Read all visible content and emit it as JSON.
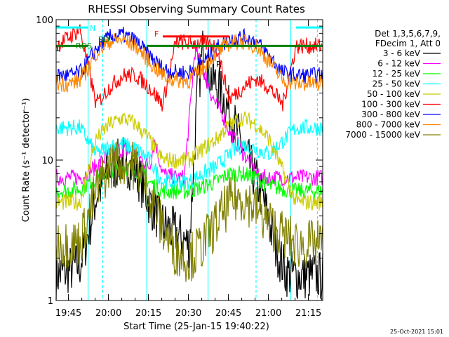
{
  "chart_data": {
    "type": "line",
    "title": "RHESSI Observing Summary Count Rates",
    "xlabel": "Start Time (25-Jan-15 19:40:22)",
    "ylabel": "Count Rate (s⁻¹ detector⁻¹)",
    "yscale": "log",
    "ylim": [
      1,
      100
    ],
    "xlim_minutes_after_start": [
      0,
      100
    ],
    "x_tick_labels": [
      "19:45",
      "20:00",
      "20:15",
      "20:30",
      "20:45",
      "21:00",
      "21:15"
    ],
    "x_tick_minutes": [
      4.63,
      19.63,
      34.63,
      49.63,
      64.63,
      79.63,
      94.63
    ],
    "y_tick_labels": [
      "1",
      "10",
      "100"
    ],
    "y_tick_values": [
      1,
      10,
      100
    ],
    "legend": {
      "placement": "right",
      "header_lines": [
        "Det 1,3,5,6,7,9,",
        "FDecim 1, Att 0"
      ]
    },
    "flag_labels": [
      "N",
      "RD",
      "RDS",
      "F",
      "R"
    ],
    "footer_date": "25-Oct-2021 15:01",
    "series": [
      {
        "name": "3 - 6 keV",
        "color": "#000000",
        "x": [
          0,
          9,
          12,
          15,
          20,
          25,
          30,
          35,
          40,
          45,
          50,
          53,
          55,
          58,
          62,
          66,
          70,
          74,
          78,
          82,
          86,
          90,
          95,
          100
        ],
        "y": [
          1.5,
          1.8,
          3,
          5.5,
          8.5,
          10,
          8.5,
          5,
          3.5,
          3,
          2.5,
          30,
          60,
          40,
          30,
          20,
          12,
          8,
          5,
          2.5,
          1.6,
          1.5,
          1.5,
          1.5
        ]
      },
      {
        "name": "6 - 12 keV",
        "color": "#ff00ff",
        "x": [
          0,
          9,
          15,
          20,
          25,
          30,
          35,
          37,
          40,
          45,
          48,
          50,
          52,
          54,
          56,
          58,
          60,
          62,
          65,
          68,
          72,
          76,
          80,
          90,
          100
        ],
        "y": [
          7.5,
          7.5,
          9,
          11,
          12,
          11,
          9,
          14,
          8,
          7.5,
          7.5,
          20,
          60,
          50,
          40,
          30,
          25,
          22,
          16,
          13,
          10,
          7.5,
          7.5,
          7.5,
          7.5
        ]
      },
      {
        "name": "12 - 25 keV",
        "color": "#00ff00",
        "x": [
          0,
          9,
          15,
          20,
          25,
          30,
          35,
          40,
          45,
          50,
          55,
          60,
          65,
          70,
          75,
          80,
          90,
          100
        ],
        "y": [
          6,
          6.2,
          7.5,
          8.5,
          9,
          8.5,
          7,
          6,
          6,
          6,
          6.5,
          7,
          8,
          8,
          7.5,
          6.5,
          6,
          6
        ]
      },
      {
        "name": "25 - 50 keV",
        "color": "#00ffff",
        "x": [
          0,
          9,
          15,
          20,
          25,
          30,
          35,
          40,
          45,
          50,
          55,
          60,
          65,
          70,
          75,
          80,
          90,
          100
        ],
        "y": [
          17,
          17,
          11,
          12.5,
          13,
          12,
          10,
          7,
          7,
          7,
          8,
          9,
          11,
          13,
          12,
          11,
          17,
          17
        ]
      },
      {
        "name": "50 - 100 keV",
        "color": "#cccc00",
        "x": [
          0,
          9,
          15,
          20,
          25,
          30,
          35,
          40,
          45,
          50,
          55,
          60,
          65,
          70,
          75,
          80,
          90,
          100
        ],
        "y": [
          5,
          5,
          14,
          18,
          20,
          18,
          14,
          10,
          10,
          10,
          12,
          14,
          18,
          20,
          18,
          14,
          5,
          5
        ]
      },
      {
        "name": "100 - 300 keV",
        "color": "#ff0000",
        "x": [
          0,
          9,
          15,
          20,
          25,
          30,
          35,
          40,
          45,
          50,
          55,
          60,
          65,
          70,
          75,
          80,
          85,
          90,
          95,
          100
        ],
        "y": [
          65,
          85,
          25,
          33,
          40,
          40,
          33,
          25,
          70,
          68,
          68,
          65,
          27,
          33,
          38,
          33,
          25,
          65,
          65,
          65
        ]
      },
      {
        "name": "300 - 800 keV",
        "color": "#0000ff",
        "x": [
          0,
          5,
          9,
          12,
          15,
          20,
          25,
          30,
          35,
          40,
          45,
          50,
          55,
          60,
          65,
          70,
          75,
          80,
          85,
          90,
          95,
          100
        ],
        "y": [
          40,
          40,
          42,
          50,
          62,
          75,
          78,
          70,
          55,
          45,
          42,
          42,
          50,
          62,
          72,
          75,
          70,
          55,
          42,
          40,
          40,
          40
        ]
      },
      {
        "name": "800 - 7000 keV",
        "color": "#ff8800",
        "x": [
          0,
          5,
          9,
          12,
          15,
          20,
          25,
          30,
          35,
          40,
          45,
          50,
          55,
          60,
          65,
          70,
          75,
          80,
          85,
          90,
          95,
          100
        ],
        "y": [
          35,
          35,
          37,
          45,
          58,
          70,
          72,
          65,
          50,
          40,
          37,
          37,
          45,
          58,
          68,
          70,
          65,
          50,
          37,
          35,
          35,
          35
        ]
      },
      {
        "name": "7000 - 15000 keV",
        "color": "#808000",
        "x": [
          0,
          9,
          15,
          20,
          25,
          30,
          35,
          40,
          45,
          50,
          55,
          60,
          65,
          70,
          75,
          80,
          90,
          100
        ],
        "y": [
          2.5,
          2.6,
          6,
          9,
          10,
          9,
          6,
          3.2,
          2.2,
          2,
          2.5,
          3.5,
          5,
          5.5,
          4.5,
          3.5,
          2.5,
          2.5
        ]
      }
    ],
    "attenuator_state_lines": [
      {
        "color": "#008000",
        "y": 65,
        "segments": [
          [
            0,
            12
          ],
          [
            34,
            100
          ]
        ]
      },
      {
        "color": "#ff0000",
        "y": 76,
        "segments": [
          [
            40,
            65
          ]
        ]
      },
      {
        "color": "#00ffff",
        "y": 88,
        "segments": [
          [
            0,
            12
          ],
          [
            90,
            100
          ]
        ]
      }
    ],
    "vertical_markers": [
      {
        "x": 12,
        "style": "solid",
        "color": "#00ffff"
      },
      {
        "x": 17.5,
        "style": "dashed",
        "color": "#00ffff"
      },
      {
        "x": 34,
        "style": "solid",
        "color": "#00ffff"
      },
      {
        "x": 57,
        "style": "solid",
        "color": "#00ffff"
      },
      {
        "x": 75,
        "style": "dashed",
        "color": "#00ffff"
      },
      {
        "x": 88,
        "style": "solid",
        "color": "#00ffff"
      },
      {
        "x": 98,
        "style": "dashed",
        "color": "#00ffff"
      }
    ]
  }
}
